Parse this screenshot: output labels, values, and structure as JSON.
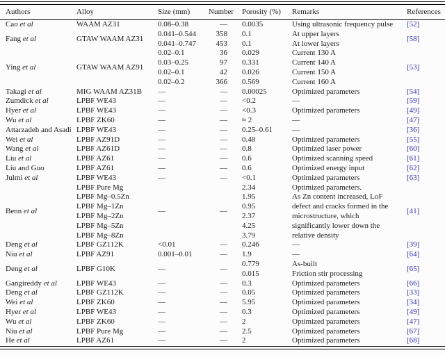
{
  "colors": {
    "reference_link": "#2e2eb8",
    "text": "#1a1a1a",
    "rule": "#000000"
  },
  "table": {
    "columns": [
      "Authors",
      "Alloy",
      "Size (mm)",
      "Number",
      "Porosity (%)",
      "Remarks",
      "References"
    ],
    "groups": [
      {
        "author": "Cao et al",
        "alloy": "WAAM AZ31",
        "size": "0.08–0.38",
        "number": "—",
        "porosity": "0.0035",
        "remarks": "Using ultrasonic frequency pulse",
        "ref": "[52]"
      },
      {
        "author": "Fang et al",
        "alloy": "GTAW WAAM AZ31",
        "size": [
          "0.041–0.544",
          "0.041–0.747"
        ],
        "number": [
          "358",
          "453"
        ],
        "porosity": [
          "0.1",
          "0.1"
        ],
        "remarks": [
          "At upper layers",
          "At lower layers"
        ],
        "ref": "[58]"
      },
      {
        "author": "Ying et al",
        "alloy": "GTAW WAAM AZ91",
        "size": [
          "0.02–0.1",
          "0.03–0.25",
          "0.02–0.1",
          "0.02–0.2"
        ],
        "number": [
          "36",
          "97",
          "42",
          "366"
        ],
        "porosity": [
          "0.029",
          "0.331",
          "0.026",
          "0.569"
        ],
        "remarks": [
          "Current 130 A",
          "Current 140 A",
          "Current 150 A",
          "Current 160 A"
        ],
        "ref": "[53]"
      },
      {
        "author": "Takagi et al",
        "alloy": "MIG WAAM AZ31B",
        "size": "—",
        "number": "—",
        "porosity": "0.00025",
        "remarks": "Optimized parameters",
        "ref": "[54]"
      },
      {
        "author": "Zumdick et al",
        "alloy": "LPBF WE43",
        "size": "—",
        "number": "—",
        "porosity": "<0.2",
        "remarks": "—",
        "ref": "[59]"
      },
      {
        "author": "Hyer et al",
        "alloy": "LPBF WE43",
        "size": "—",
        "number": "—",
        "porosity": "<0.3",
        "remarks": "Optimized parameters",
        "ref": "[49]"
      },
      {
        "author": "Wu et al",
        "alloy": "LPBF ZK60",
        "size": "—",
        "number": "—",
        "porosity": "≈ 2",
        "remarks": "—",
        "ref": "[47]"
      },
      {
        "author": "Attarzadeh and Asadi",
        "alloy": "LPBF WE43",
        "size": "—",
        "number": "—",
        "porosity": "0.25–0.61",
        "remarks": "—",
        "ref": "[36]"
      },
      {
        "author": "Wei et al",
        "alloy": "LPBF AZ91D",
        "size": "—",
        "number": "—",
        "porosity": "0.48",
        "remarks": "Optimized parameters",
        "ref": "[55]"
      },
      {
        "author": "Wang et al",
        "alloy": "LPBF AZ61D",
        "size": "—",
        "number": "—",
        "porosity": "0.8",
        "remarks": "Optimized laser power",
        "ref": "[60]"
      },
      {
        "author": "Liu et al",
        "alloy": "LPBF AZ61",
        "size": "—",
        "number": "—",
        "porosity": "0.6",
        "remarks": "Optimized scanning speed",
        "ref": "[61]"
      },
      {
        "author": "Liu and Guo",
        "alloy": "LPBF AZ61",
        "size": "—",
        "number": "—",
        "porosity": "0.6",
        "remarks": "Optimized energy input",
        "ref": "[62]"
      },
      {
        "author": "Julmi et al",
        "alloy": "LPBF WE43",
        "size": "—",
        "number": "—",
        "porosity": "<0.1",
        "remarks": "Optimized parameters",
        "ref": "[63]"
      },
      {
        "author": "Benn et al",
        "alloy": [
          "LPBF Pure Mg",
          "LPBF Mg–0.5Zn",
          "LPBF Mg–1Zn",
          "LPBF Mg–2Zn",
          "LPBF Mg–5Zn",
          "LPBF Mg–8Zn"
        ],
        "size": "—",
        "number": "—",
        "porosity": [
          "2.34",
          "1.95",
          "0.95",
          "2.37",
          "4.25",
          "3.79"
        ],
        "remarks": [
          "Optimized parameters.",
          "As Zn content increased, LoF",
          "defect and cracks formed in the",
          "microstructure, which",
          "significantly lower down the",
          "relative density"
        ],
        "ref": "[41]"
      },
      {
        "author": "Deng et al",
        "alloy": "LPBF GZ112K",
        "size": "<0.01",
        "number": "—",
        "porosity": "0.246",
        "remarks": "—",
        "ref": "[39]"
      },
      {
        "author": "Niu et al",
        "alloy": "LPBF AZ91",
        "size": "0.001–0.01",
        "number": "—",
        "porosity": "1.9",
        "remarks": "—",
        "ref": "[64]"
      },
      {
        "author": "Deng et al",
        "alloy": "LPBF G10K",
        "size": "—",
        "number": "—",
        "porosity": [
          "0.779",
          "0.015"
        ],
        "remarks": [
          "As-built",
          "Friction stir processing"
        ],
        "ref": "[65]"
      },
      {
        "author": "Gangireddy et al",
        "alloy": "LPBF WE43",
        "size": "—",
        "number": "—",
        "porosity": "0.3",
        "remarks": "Optimized parameters",
        "ref": "[66]"
      },
      {
        "author": "Deng et al",
        "alloy": "LPBF GZ112K",
        "size": "—",
        "number": "—",
        "porosity": "0.05",
        "remarks": "Optimized parameters",
        "ref": "[33]"
      },
      {
        "author": "Wei et al",
        "alloy": "LPBF ZK60",
        "size": "—",
        "number": "—",
        "porosity": "5.95",
        "remarks": "Optimized parameters",
        "ref": "[34]"
      },
      {
        "author": "Hyer et al",
        "alloy": "LPBF WE43",
        "size": "—",
        "number": "—",
        "porosity": "0.3",
        "remarks": "Optimized parameters",
        "ref": "[49]"
      },
      {
        "author": "Wu et al",
        "alloy": "LPBF ZK60",
        "size": "—",
        "number": "—",
        "porosity": "2",
        "remarks": "Optimized parameters",
        "ref": "[47]"
      },
      {
        "author": "Niu et al",
        "alloy": "LPBF Pure Mg",
        "size": "—",
        "number": "—",
        "porosity": "2.5",
        "remarks": "Optimized parameters",
        "ref": "[67]"
      },
      {
        "author": "He et al",
        "alloy": "LPBF AZ61",
        "size": "—",
        "number": "—",
        "porosity": "2",
        "remarks": "Optimized parameters",
        "ref": "[68]"
      }
    ]
  }
}
